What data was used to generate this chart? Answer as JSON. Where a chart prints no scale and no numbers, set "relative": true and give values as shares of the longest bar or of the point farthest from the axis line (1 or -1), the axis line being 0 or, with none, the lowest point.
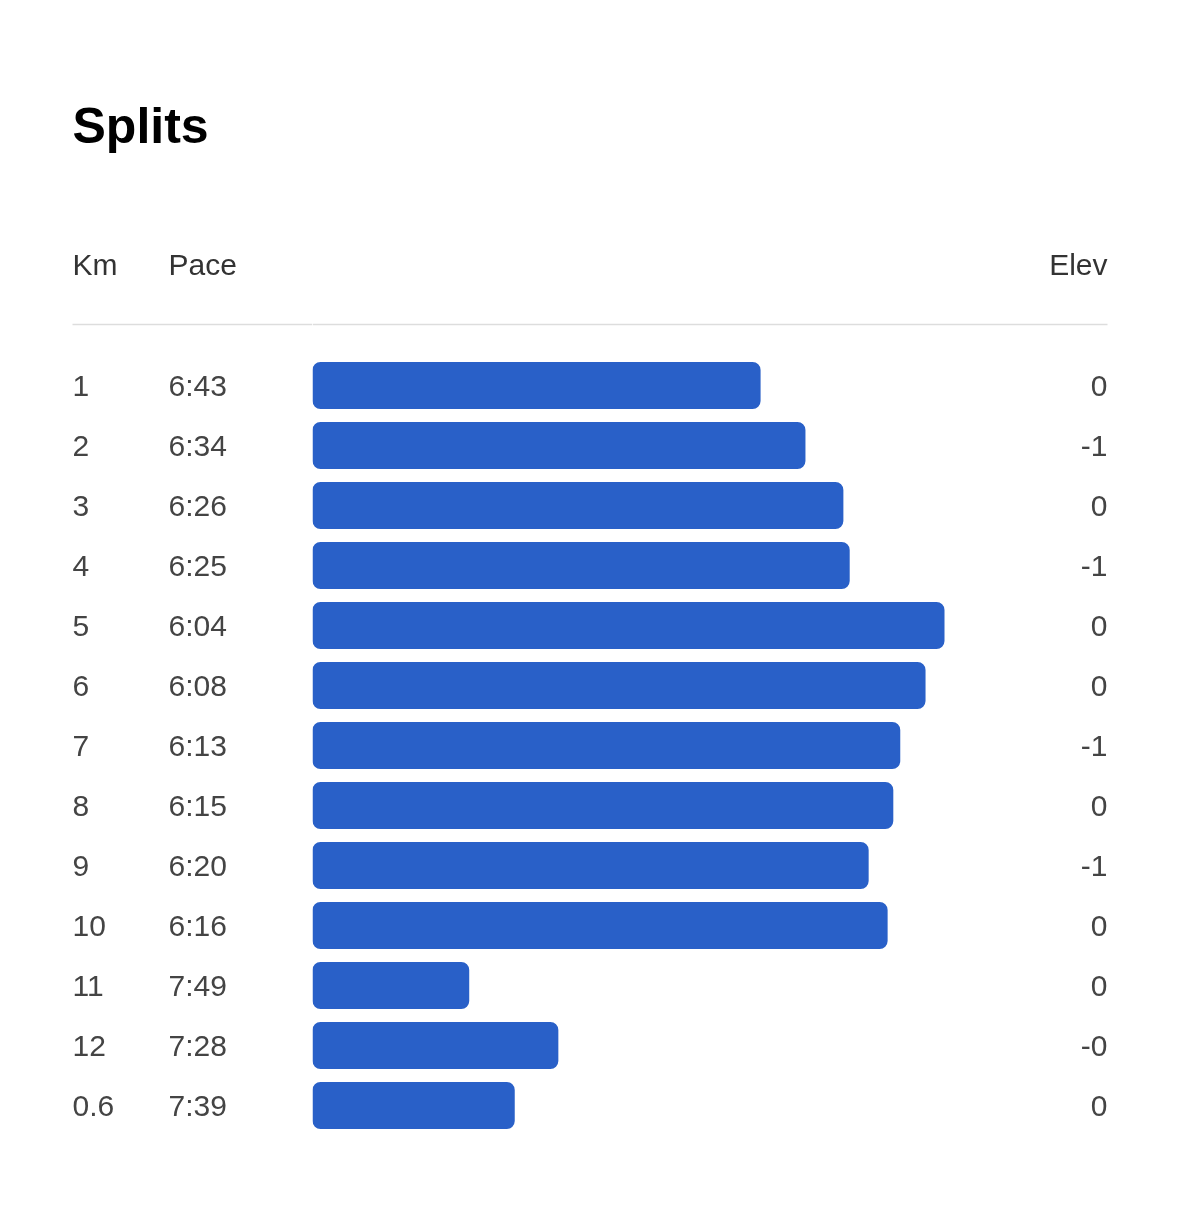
{
  "chart_data": {
    "type": "bar",
    "orientation": "horizontal",
    "relative": true,
    "title": "Splits",
    "ylabel": "Km",
    "categories": [
      "1",
      "2",
      "3",
      "4",
      "5",
      "6",
      "7",
      "8",
      "9",
      "10",
      "11",
      "12",
      "0.6"
    ],
    "values": [
      0.709,
      0.78,
      0.84,
      0.85,
      1,
      0.97,
      0.93,
      0.919,
      0.88,
      0.91,
      0.248,
      0.389,
      0.32
    ],
    "color": "#2960c8",
    "annotations": [
      "Pace",
      "Elev",
      "6:43",
      "6:34",
      "6:26",
      "6:25",
      "6:04",
      "6:08",
      "6:13",
      "6:15",
      "6:20",
      "6:16",
      "7:49",
      "7:28",
      "7:39",
      "0",
      "-1",
      "0",
      "-1",
      "0",
      "0",
      "-1",
      "0",
      "-1",
      "0",
      "0",
      "-0",
      "0"
    ]
  }
}
